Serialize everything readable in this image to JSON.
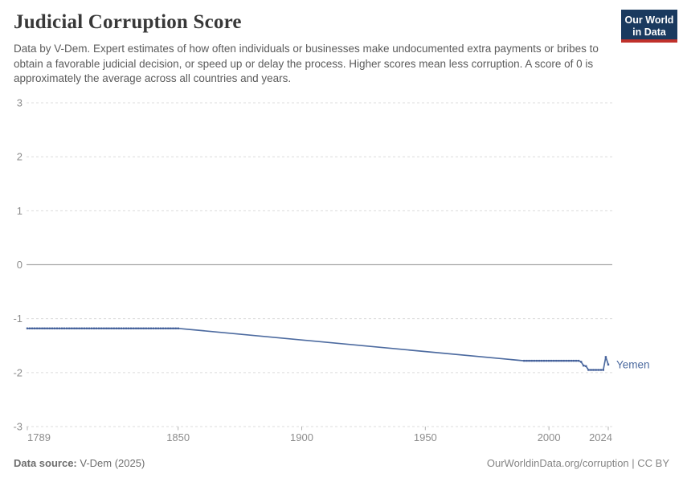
{
  "header": {
    "title": "Judicial Corruption Score",
    "subtitle": "Data by V-Dem. Expert estimates of how often individuals or businesses make undocumented extra payments or bribes to obtain a favorable judicial decision, or speed up or delay the process. Higher scores mean less corruption. A score of 0 is approximately the average across all countries and years.",
    "logo": {
      "line1": "Our World",
      "line2": "in Data",
      "bg_color": "#1a3a5f",
      "accent_color": "#c0312b"
    }
  },
  "chart_data": {
    "type": "line",
    "title": "Judicial Corruption Score",
    "xlabel": "",
    "ylabel": "",
    "x_range": [
      1789,
      2024
    ],
    "y_range": [
      -3,
      3
    ],
    "x_ticks": [
      1789,
      1850,
      1900,
      1950,
      2000,
      2024
    ],
    "y_ticks": [
      3,
      2,
      1,
      0,
      -1,
      -2,
      -3
    ],
    "grid": "horizontal dashed, solid zero line",
    "legend_position": "end-of-line label",
    "series": [
      {
        "name": "Yemen",
        "color": "#4d6ba0",
        "marker_color": "#45619b",
        "points": [
          [
            1789,
            -1.18
          ],
          [
            1850,
            -1.18
          ],
          [
            1990,
            -1.78
          ],
          [
            2012,
            -1.78
          ],
          [
            2013,
            -1.8
          ],
          [
            2014,
            -1.87
          ],
          [
            2015,
            -1.88
          ],
          [
            2016,
            -1.95
          ],
          [
            2022,
            -1.95
          ],
          [
            2023,
            -1.71
          ],
          [
            2024,
            -1.85
          ]
        ],
        "marker_year_ranges": [
          [
            1789,
            1850
          ],
          [
            1990,
            2024
          ]
        ]
      }
    ]
  },
  "footer": {
    "source_label": "Data source:",
    "source_value": " V-Dem (2025)",
    "credit": "OurWorldinData.org/corruption | CC BY"
  }
}
